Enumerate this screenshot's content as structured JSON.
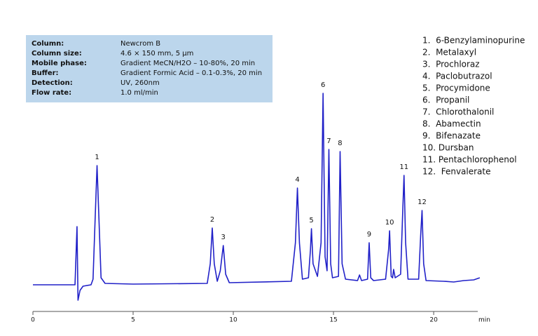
{
  "chart_data": {
    "type": "line",
    "info": [
      {
        "label": "Column:",
        "value": "Newcrom B"
      },
      {
        "label": "Column size:",
        "value": "4.6 × 150 mm, 5 µm"
      },
      {
        "label": "Mobile phase:",
        "value": "Gradient MeCN/H2O – 10-80%, 20 min"
      },
      {
        "label": "Buffer:",
        "value": "Gradient Formic Acid – 0.1-0.3%, 20 min"
      },
      {
        "label": "Detection:",
        "value": "UV, 260nm"
      },
      {
        "label": "Flow rate:",
        "value": "1.0 ml/min"
      }
    ],
    "compounds": [
      "1.  6-Benzylaminopurine",
      "2.  Metalaxyl",
      "3.  Prochloraz",
      "4.  Paclobutrazol",
      "5.  Procymidone",
      "6.  Propanil",
      "7.  Chlorothalonil",
      "8.  Abamectin",
      "9.  Bifenazate",
      "10. Dursban",
      "11. Pentachlorophenol",
      "12.  Fenvalerate"
    ],
    "xlabel": "min",
    "xlim": [
      0,
      22.2
    ],
    "xticks": [
      0,
      5,
      10,
      15,
      20
    ],
    "ylim": [
      -38,
      330
    ],
    "series": [
      {
        "color": "#2121c8",
        "x": [
          0,
          1.0,
          2.1,
          2.2,
          2.25,
          2.35,
          2.5,
          2.9,
          3.0,
          3.1,
          3.2,
          3.3,
          3.4,
          3.6,
          5,
          8.7,
          8.85,
          8.95,
          9.05,
          9.2,
          9.35,
          9.5,
          9.62,
          9.8,
          12.9,
          13.1,
          13.2,
          13.3,
          13.45,
          13.75,
          13.85,
          13.9,
          13.98,
          14.2,
          14.38,
          14.48,
          14.58,
          14.68,
          14.77,
          14.86,
          14.95,
          15.25,
          15.33,
          15.43,
          15.6,
          16.2,
          16.3,
          16.4,
          16.7,
          16.78,
          16.86,
          17.0,
          17.6,
          17.75,
          17.8,
          17.88,
          17.95,
          18.0,
          18.08,
          18.35,
          18.45,
          18.52,
          18.6,
          18.72,
          19.25,
          19.35,
          19.42,
          19.5,
          19.62,
          20.5,
          21.0,
          21.5,
          22.0,
          22.3
        ],
        "values": [
          0,
          0,
          0,
          83,
          -22,
          -8,
          -2,
          0,
          8,
          90,
          170,
          90,
          10,
          2,
          1,
          2,
          30,
          81,
          30,
          5,
          20,
          56,
          15,
          3,
          5,
          60,
          138,
          60,
          8,
          10,
          50,
          80,
          30,
          12,
          60,
          273,
          40,
          20,
          193,
          30,
          10,
          12,
          190,
          30,
          8,
          6,
          14,
          6,
          8,
          60,
          10,
          6,
          8,
          50,
          77,
          12,
          10,
          22,
          10,
          15,
          100,
          156,
          60,
          8,
          8,
          70,
          106,
          30,
          6,
          5,
          4,
          6,
          7,
          10
        ]
      }
    ],
    "annotations": [
      {
        "text": "1",
        "x": 3.2,
        "y": 182
      },
      {
        "text": "2",
        "x": 8.95,
        "y": 93
      },
      {
        "text": "3",
        "x": 9.5,
        "y": 68
      },
      {
        "text": "4",
        "x": 13.2,
        "y": 150
      },
      {
        "text": "5",
        "x": 13.9,
        "y": 92
      },
      {
        "text": "6",
        "x": 14.48,
        "y": 285
      },
      {
        "text": "7",
        "x": 14.77,
        "y": 205
      },
      {
        "text": "8",
        "x": 15.33,
        "y": 202
      },
      {
        "text": "9",
        "x": 16.78,
        "y": 72
      },
      {
        "text": "10",
        "x": 17.8,
        "y": 89
      },
      {
        "text": "11",
        "x": 18.52,
        "y": 168
      },
      {
        "text": "12",
        "x": 19.42,
        "y": 118
      }
    ]
  }
}
